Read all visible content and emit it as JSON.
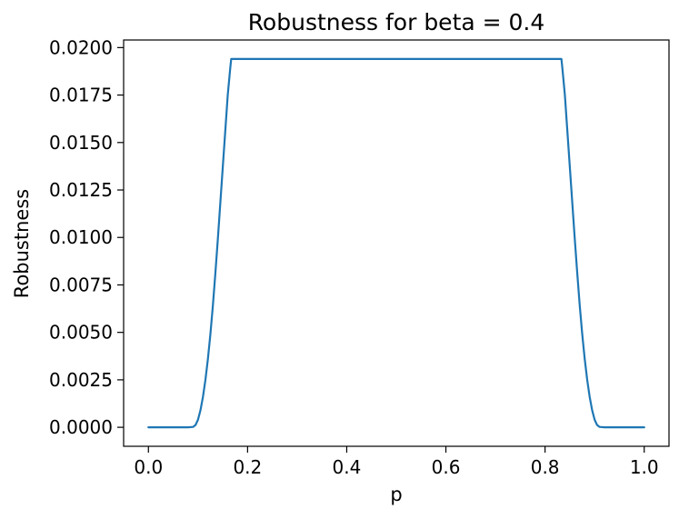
{
  "chart_data": {
    "type": "line",
    "title": "Robustness for beta = 0.4",
    "xlabel": "p",
    "ylabel": "Robustness",
    "xlim": [
      -0.05,
      1.05
    ],
    "ylim": [
      -0.001,
      0.0204
    ],
    "grid": false,
    "x_ticks": [
      0.0,
      0.2,
      0.4,
      0.6,
      0.8,
      1.0
    ],
    "x_tick_labels": [
      "0.0",
      "0.2",
      "0.4",
      "0.6",
      "0.8",
      "1.0"
    ],
    "y_ticks": [
      0.0,
      0.0025,
      0.005,
      0.0075,
      0.01,
      0.0125,
      0.015,
      0.0175,
      0.02
    ],
    "y_tick_labels": [
      "0.0000",
      "0.0025",
      "0.0050",
      "0.0075",
      "0.0100",
      "0.0125",
      "0.0150",
      "0.0175",
      "0.0200"
    ],
    "series": [
      {
        "color": "#1f77b4",
        "x": [
          0.0,
          0.02,
          0.04,
          0.06,
          0.08,
          0.09,
          0.095,
          0.1,
          0.105,
          0.11,
          0.115,
          0.12,
          0.125,
          0.13,
          0.135,
          0.14,
          0.145,
          0.15,
          0.155,
          0.16,
          0.165,
          0.167,
          0.2,
          0.3,
          0.4,
          0.5,
          0.6,
          0.7,
          0.8,
          0.833,
          0.835,
          0.84,
          0.845,
          0.85,
          0.855,
          0.86,
          0.865,
          0.87,
          0.875,
          0.88,
          0.885,
          0.89,
          0.895,
          0.9,
          0.905,
          0.91,
          0.92,
          0.94,
          0.96,
          0.98,
          1.0
        ],
        "y": [
          0.0,
          0.0,
          0.0,
          0.0,
          0.0,
          2e-05,
          0.00012,
          0.0004,
          0.0009,
          0.0016,
          0.0025,
          0.0036,
          0.0049,
          0.0064,
          0.0081,
          0.0099,
          0.0118,
          0.0137,
          0.0156,
          0.0175,
          0.0189,
          0.0194,
          0.0194,
          0.0194,
          0.0194,
          0.0194,
          0.0194,
          0.0194,
          0.0194,
          0.0194,
          0.0189,
          0.0175,
          0.0156,
          0.0137,
          0.0118,
          0.0099,
          0.0081,
          0.0064,
          0.0049,
          0.0036,
          0.0025,
          0.0016,
          0.0009,
          0.0004,
          0.00012,
          2e-05,
          0.0,
          0.0,
          0.0,
          0.0,
          0.0
        ]
      }
    ]
  }
}
